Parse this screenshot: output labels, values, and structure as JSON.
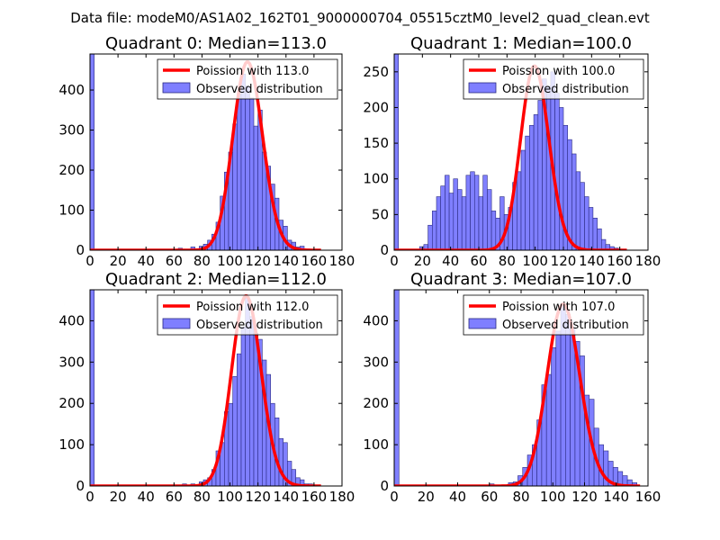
{
  "figure_title": "Data file: modeM0/AS1A02_162T01_9000000704_05515cztM0_level2_quad_clean.evt",
  "colors": {
    "bar_fill": "#7f7fff",
    "bar_edge": "#2a2a80",
    "poisson_line": "#ff0000"
  },
  "chart_data": [
    {
      "type": "bar",
      "title": "Quadrant 0: Median=113.0",
      "median": 113.0,
      "xlim": [
        0,
        180
      ],
      "ylim": [
        0,
        490
      ],
      "xticks": [
        "0",
        "20",
        "40",
        "60",
        "80",
        "100",
        "120",
        "140",
        "160",
        "180"
      ],
      "yticks": [
        "0",
        "100",
        "200",
        "300",
        "400"
      ],
      "legend": {
        "position": "top-right",
        "line_label": "Poission with 113.0",
        "bar_label": "Observed distribution"
      },
      "bin_width": 3,
      "bins": [
        {
          "x": 0,
          "y": 490
        },
        {
          "x": 63,
          "y": 5
        },
        {
          "x": 72,
          "y": 8
        },
        {
          "x": 78,
          "y": 10
        },
        {
          "x": 81,
          "y": 15
        },
        {
          "x": 84,
          "y": 25
        },
        {
          "x": 87,
          "y": 40
        },
        {
          "x": 90,
          "y": 70
        },
        {
          "x": 93,
          "y": 135
        },
        {
          "x": 96,
          "y": 195
        },
        {
          "x": 99,
          "y": 245
        },
        {
          "x": 102,
          "y": 315
        },
        {
          "x": 105,
          "y": 390
        },
        {
          "x": 108,
          "y": 440
        },
        {
          "x": 111,
          "y": 410
        },
        {
          "x": 114,
          "y": 380
        },
        {
          "x": 117,
          "y": 310
        },
        {
          "x": 120,
          "y": 350
        },
        {
          "x": 123,
          "y": 245
        },
        {
          "x": 126,
          "y": 210
        },
        {
          "x": 129,
          "y": 165
        },
        {
          "x": 132,
          "y": 130
        },
        {
          "x": 135,
          "y": 75
        },
        {
          "x": 138,
          "y": 60
        },
        {
          "x": 141,
          "y": 25
        },
        {
          "x": 144,
          "y": 20
        },
        {
          "x": 147,
          "y": 8
        },
        {
          "x": 150,
          "y": 10
        },
        {
          "x": 153,
          "y": 3
        },
        {
          "x": 156,
          "y": 2
        }
      ],
      "poisson": {
        "lambda": 113.0,
        "x_range": [
          0,
          165
        ],
        "peak": 470
      }
    },
    {
      "type": "bar",
      "title": "Quadrant 1: Median=100.0",
      "median": 100.0,
      "xlim": [
        0,
        180
      ],
      "ylim": [
        0,
        275
      ],
      "xticks": [
        "0",
        "20",
        "40",
        "60",
        "80",
        "100",
        "120",
        "140",
        "160",
        "180"
      ],
      "yticks": [
        "0",
        "50",
        "100",
        "150",
        "200",
        "250"
      ],
      "legend": {
        "position": "top-right",
        "line_label": "Poission with 100.0",
        "bar_label": "Observed distribution"
      },
      "bin_width": 3,
      "bins": [
        {
          "x": 0,
          "y": 275
        },
        {
          "x": 18,
          "y": 5
        },
        {
          "x": 21,
          "y": 8
        },
        {
          "x": 24,
          "y": 35
        },
        {
          "x": 27,
          "y": 55
        },
        {
          "x": 30,
          "y": 75
        },
        {
          "x": 33,
          "y": 90
        },
        {
          "x": 36,
          "y": 105
        },
        {
          "x": 39,
          "y": 80
        },
        {
          "x": 42,
          "y": 100
        },
        {
          "x": 45,
          "y": 85
        },
        {
          "x": 48,
          "y": 75
        },
        {
          "x": 51,
          "y": 105
        },
        {
          "x": 54,
          "y": 110
        },
        {
          "x": 57,
          "y": 105
        },
        {
          "x": 60,
          "y": 75
        },
        {
          "x": 63,
          "y": 105
        },
        {
          "x": 66,
          "y": 85
        },
        {
          "x": 69,
          "y": 55
        },
        {
          "x": 72,
          "y": 45
        },
        {
          "x": 75,
          "y": 75
        },
        {
          "x": 78,
          "y": 50
        },
        {
          "x": 81,
          "y": 60
        },
        {
          "x": 84,
          "y": 95
        },
        {
          "x": 87,
          "y": 110
        },
        {
          "x": 90,
          "y": 140
        },
        {
          "x": 93,
          "y": 160
        },
        {
          "x": 96,
          "y": 175
        },
        {
          "x": 99,
          "y": 190
        },
        {
          "x": 102,
          "y": 210
        },
        {
          "x": 105,
          "y": 240
        },
        {
          "x": 108,
          "y": 230
        },
        {
          "x": 111,
          "y": 250
        },
        {
          "x": 114,
          "y": 220
        },
        {
          "x": 117,
          "y": 200
        },
        {
          "x": 120,
          "y": 175
        },
        {
          "x": 123,
          "y": 155
        },
        {
          "x": 126,
          "y": 135
        },
        {
          "x": 129,
          "y": 110
        },
        {
          "x": 132,
          "y": 95
        },
        {
          "x": 135,
          "y": 75
        },
        {
          "x": 138,
          "y": 60
        },
        {
          "x": 141,
          "y": 45
        },
        {
          "x": 144,
          "y": 30
        },
        {
          "x": 147,
          "y": 15
        },
        {
          "x": 150,
          "y": 8
        },
        {
          "x": 153,
          "y": 5
        },
        {
          "x": 156,
          "y": 3
        }
      ],
      "poisson": {
        "lambda": 100.0,
        "x_range": [
          0,
          165
        ],
        "peak": 258
      }
    },
    {
      "type": "bar",
      "title": "Quadrant 2: Median=112.0",
      "median": 112.0,
      "xlim": [
        0,
        180
      ],
      "ylim": [
        0,
        475
      ],
      "xticks": [
        "0",
        "20",
        "40",
        "60",
        "80",
        "100",
        "120",
        "140",
        "160",
        "180"
      ],
      "yticks": [
        "0",
        "100",
        "200",
        "300",
        "400"
      ],
      "legend": {
        "position": "top-right",
        "line_label": "Poission with 112.0",
        "bar_label": "Observed distribution"
      },
      "bin_width": 3,
      "bins": [
        {
          "x": 0,
          "y": 475
        },
        {
          "x": 66,
          "y": 5
        },
        {
          "x": 72,
          "y": 5
        },
        {
          "x": 78,
          "y": 10
        },
        {
          "x": 81,
          "y": 15
        },
        {
          "x": 84,
          "y": 20
        },
        {
          "x": 87,
          "y": 40
        },
        {
          "x": 90,
          "y": 85
        },
        {
          "x": 93,
          "y": 105
        },
        {
          "x": 96,
          "y": 180
        },
        {
          "x": 99,
          "y": 200
        },
        {
          "x": 102,
          "y": 265
        },
        {
          "x": 105,
          "y": 320
        },
        {
          "x": 108,
          "y": 385
        },
        {
          "x": 111,
          "y": 455
        },
        {
          "x": 114,
          "y": 410
        },
        {
          "x": 117,
          "y": 370
        },
        {
          "x": 120,
          "y": 355
        },
        {
          "x": 123,
          "y": 305
        },
        {
          "x": 126,
          "y": 270
        },
        {
          "x": 129,
          "y": 200
        },
        {
          "x": 132,
          "y": 165
        },
        {
          "x": 135,
          "y": 115
        },
        {
          "x": 138,
          "y": 105
        },
        {
          "x": 141,
          "y": 60
        },
        {
          "x": 144,
          "y": 40
        },
        {
          "x": 147,
          "y": 20
        },
        {
          "x": 150,
          "y": 15
        },
        {
          "x": 153,
          "y": 5
        },
        {
          "x": 156,
          "y": 5
        }
      ],
      "poisson": {
        "lambda": 112.0,
        "x_range": [
          0,
          165
        ],
        "peak": 460
      }
    },
    {
      "type": "bar",
      "title": "Quadrant 3: Median=107.0",
      "median": 107.0,
      "xlim": [
        0,
        160
      ],
      "ylim": [
        0,
        475
      ],
      "xticks": [
        "0",
        "20",
        "40",
        "60",
        "80",
        "100",
        "120",
        "140",
        "160"
      ],
      "yticks": [
        "0",
        "100",
        "200",
        "300",
        "400"
      ],
      "legend": {
        "position": "top-right",
        "line_label": "Poission with 107.0",
        "bar_label": "Observed distribution"
      },
      "bin_width": 3,
      "bins": [
        {
          "x": 0,
          "y": 475
        },
        {
          "x": 60,
          "y": 5
        },
        {
          "x": 72,
          "y": 8
        },
        {
          "x": 75,
          "y": 10
        },
        {
          "x": 78,
          "y": 25
        },
        {
          "x": 81,
          "y": 45
        },
        {
          "x": 84,
          "y": 75
        },
        {
          "x": 87,
          "y": 100
        },
        {
          "x": 90,
          "y": 160
        },
        {
          "x": 93,
          "y": 245
        },
        {
          "x": 96,
          "y": 270
        },
        {
          "x": 99,
          "y": 335
        },
        {
          "x": 102,
          "y": 375
        },
        {
          "x": 105,
          "y": 440
        },
        {
          "x": 108,
          "y": 415
        },
        {
          "x": 111,
          "y": 380
        },
        {
          "x": 114,
          "y": 350
        },
        {
          "x": 117,
          "y": 315
        },
        {
          "x": 120,
          "y": 220
        },
        {
          "x": 123,
          "y": 210
        },
        {
          "x": 126,
          "y": 140
        },
        {
          "x": 129,
          "y": 100
        },
        {
          "x": 132,
          "y": 85
        },
        {
          "x": 135,
          "y": 60
        },
        {
          "x": 138,
          "y": 45
        },
        {
          "x": 141,
          "y": 35
        },
        {
          "x": 144,
          "y": 25
        },
        {
          "x": 147,
          "y": 15
        },
        {
          "x": 150,
          "y": 8
        }
      ],
      "poisson": {
        "lambda": 107.0,
        "x_range": [
          0,
          155
        ],
        "peak": 440
      }
    }
  ]
}
